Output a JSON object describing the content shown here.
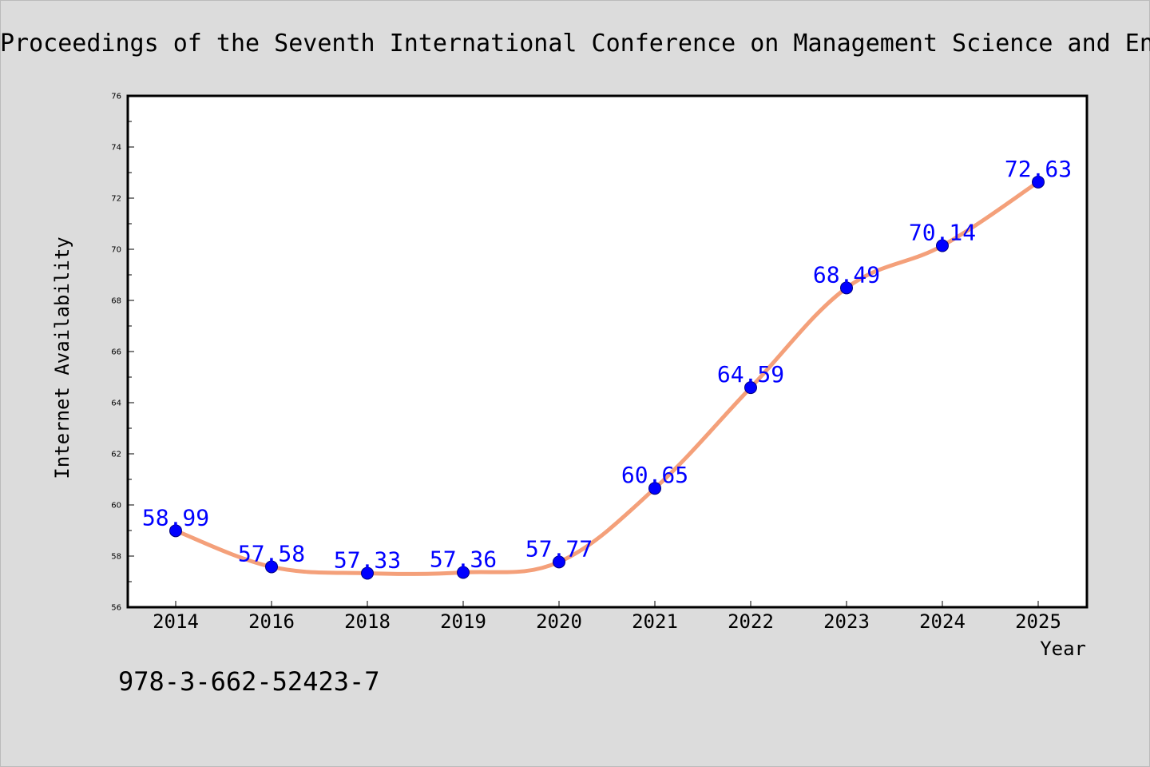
{
  "page": {
    "header_text": "Proceedings of the Seventh International Conference on Management Science and En",
    "isbn": "978-3-662-52423-7"
  },
  "chart_data": {
    "type": "line",
    "categories": [
      "2014",
      "2016",
      "2018",
      "2019",
      "2020",
      "2021",
      "2022",
      "2023",
      "2024",
      "2025"
    ],
    "series": [
      {
        "values": [
          58.99,
          57.58,
          57.33,
          57.36,
          57.77,
          60.65,
          64.59,
          68.49,
          70.14,
          72.63
        ],
        "labels": [
          "58.99",
          "57.58",
          "57.33",
          "57.36",
          "57.77",
          "60.65",
          "64.59",
          "68.49",
          "70.14",
          "72.63"
        ]
      }
    ],
    "xlabel": "Year",
    "ylabel": "Internet Availability",
    "ylim": [
      56,
      76
    ],
    "yticks": [
      56,
      58,
      60,
      62,
      64,
      66,
      68,
      70,
      72,
      74,
      76
    ],
    "grid": false,
    "colors": {
      "line": "#f4a07a",
      "marker": "#0000ff",
      "data_label": "#0000ff",
      "axis": "#000000",
      "plot_background": "#ffffff",
      "page_background": "#dcdcdc"
    }
  }
}
